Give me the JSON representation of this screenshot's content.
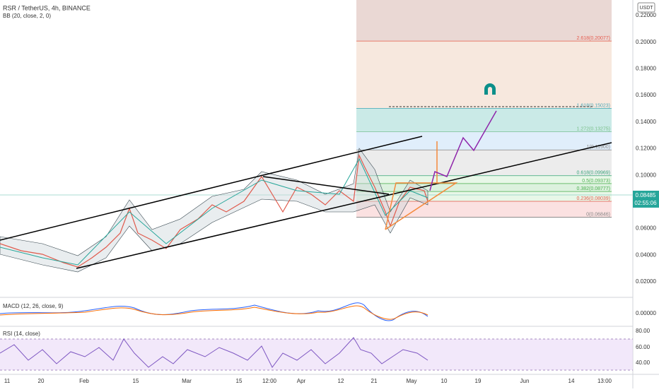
{
  "header": {
    "symbol": "RSR / TetherUS, 4h, BINANCE",
    "indicator": "BB (20, close, 2, 0)",
    "currency": "USDT"
  },
  "price_axis": [
    {
      "value": 0.22,
      "label": "0.22000"
    },
    {
      "value": 0.2,
      "label": "0.20000"
    },
    {
      "value": 0.18,
      "label": "0.18000"
    },
    {
      "value": 0.16,
      "label": "0.16000"
    },
    {
      "value": 0.14,
      "label": "0.14000"
    },
    {
      "value": 0.12,
      "label": "0.12000"
    },
    {
      "value": 0.1,
      "label": "0.10000"
    },
    {
      "value": 0.06,
      "label": "0.06000"
    },
    {
      "value": 0.04,
      "label": "0.04000"
    },
    {
      "value": 0.02,
      "label": "0.02000"
    }
  ],
  "current_price": {
    "price": "0.08485",
    "countdown": "02:55:06"
  },
  "fib_levels": [
    {
      "label": "2.618(0.20077)",
      "price": 0.20077
    },
    {
      "label": "1.618(0.15023)",
      "price": 0.15023
    },
    {
      "label": "1.272(0.13275)",
      "price": 0.13275
    },
    {
      "label": "1(0.11900)",
      "price": 0.119
    },
    {
      "label": "0.618(0.09969)",
      "price": 0.09969
    },
    {
      "label": "0.5(0.09373)",
      "price": 0.09373
    },
    {
      "label": "0.382(0.08777)",
      "price": 0.08777
    },
    {
      "label": "0.236(0.08039)",
      "price": 0.08039
    },
    {
      "label": "0(0.06846)",
      "price": 0.06846
    }
  ],
  "macd": {
    "title": "MACD (12, 26, close, 9)",
    "tick": "0.00000"
  },
  "rsi": {
    "title": "RSI (14, close)",
    "ticks": [
      "80.00",
      "60.00",
      "40.00"
    ]
  },
  "time_axis": [
    "11",
    "20",
    "Feb",
    "15",
    "Mar",
    "15",
    "12:00",
    "Apr",
    "12",
    "21",
    "May",
    "10",
    "19",
    "Jun",
    "14",
    "13:00"
  ]
}
